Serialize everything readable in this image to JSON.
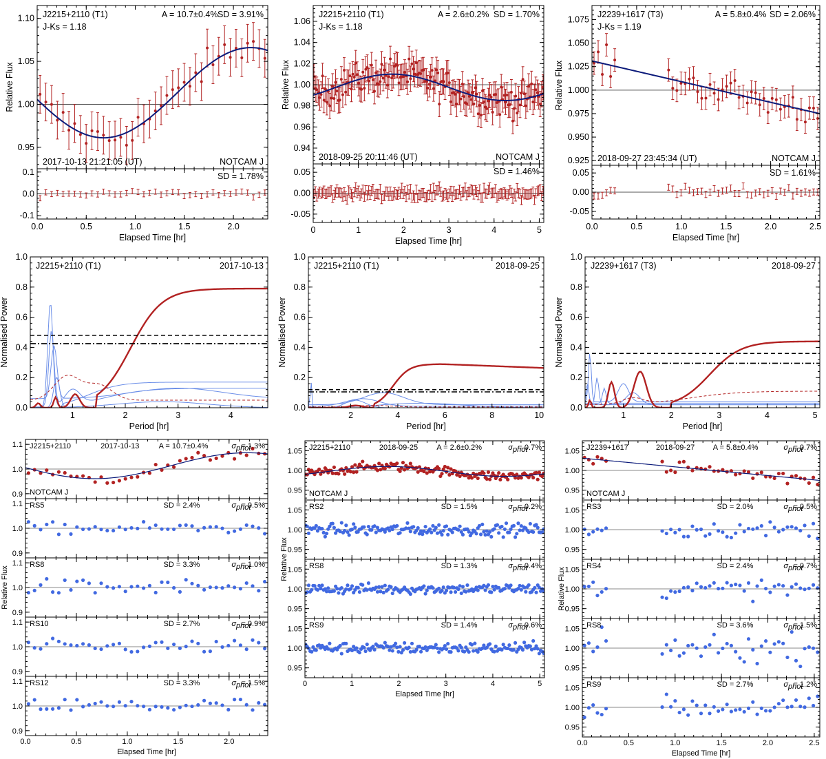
{
  "colors": {
    "target": "#b22222",
    "fit": "#0b1a7a",
    "ref": "#4169e1",
    "refline": "#6b8ee8",
    "axis": "#000000",
    "zero": "#666666"
  },
  "row1": {
    "xlabel": "Elapsed Time [hr]",
    "ylabel": "Relative Flux",
    "panels": [
      {
        "id": "a",
        "name": "J2215+2110 (T1)",
        "jks": "J-Ks = 1.18",
        "amp": "A = 10.7±0.4%",
        "sd": "SD = 3.91%",
        "date": "2017-10-13 21:21:05 (UT)",
        "inst": "NOTCAM J",
        "res_sd": "SD = 1.78%",
        "xlim": [
          0,
          2.35
        ],
        "ylim": [
          0.925,
          1.115
        ],
        "rylim": [
          -0.115,
          0.115
        ],
        "xticks": [
          "0.0",
          "0.5",
          "1.0",
          "1.5",
          "2.0"
        ],
        "yticks": [
          "0.95",
          "1.00",
          "1.05",
          "1.10"
        ],
        "rticks": [
          "-0.1",
          "0.0",
          "0.1"
        ]
      },
      {
        "id": "b",
        "name": "J2215+2110 (T1)",
        "jks": "J-Ks = 1.18",
        "amp": "A = 2.6±0.2%",
        "sd": "SD = 1.70%",
        "date": "2018-09-25 20:11:46 (UT)",
        "inst": "NOTCAM J",
        "res_sd": "SD = 1.46%",
        "xlim": [
          0,
          5.1
        ],
        "ylim": [
          0.925,
          1.075
        ],
        "rylim": [
          -0.07,
          0.07
        ],
        "xticks": [
          "0",
          "1",
          "2",
          "3",
          "4",
          "5"
        ],
        "yticks": [
          "0.94",
          "0.96",
          "0.98",
          "1.00",
          "1.02",
          "1.04",
          "1.06"
        ],
        "rticks": [
          "-0.05",
          "0.00",
          "0.05"
        ]
      },
      {
        "id": "c",
        "name": "J2239+1617 (T3)",
        "jks": "J-Ks = 1.19",
        "amp": "A = 5.8±0.4%",
        "sd": "SD = 2.06%",
        "date": "2018-09-27 23:45:34 (UT)",
        "inst": "NOTCAM J",
        "res_sd": "SD = 1.61%",
        "xlim": [
          0,
          2.55
        ],
        "ylim": [
          0.92,
          1.09
        ],
        "rylim": [
          -0.07,
          0.07
        ],
        "xticks": [
          "0.0",
          "0.5",
          "1.0",
          "1.5",
          "2.0",
          "2.5"
        ],
        "yticks": [
          "0.925",
          "0.950",
          "0.975",
          "1.000",
          "1.025",
          "1.050",
          "1.075"
        ],
        "rticks": [
          "-0.05",
          "0.00",
          "0.05"
        ]
      }
    ]
  },
  "row2": {
    "xlabel": "Period [hr]",
    "ylabel": "Normalised Power",
    "panels": [
      {
        "id": "a",
        "name": "J2215+2110 (T1)",
        "date": "2017-10-13",
        "xlim": [
          0.2,
          4.7
        ],
        "ylim": [
          0,
          1.0
        ],
        "fap1": 0.48,
        "fap2": 0.425,
        "peak_period_hr": 4.5,
        "peak_power": 0.79,
        "xticks": [
          "1",
          "2",
          "3",
          "4"
        ],
        "yticks": [
          "0.0",
          "0.2",
          "0.4",
          "0.6",
          "0.8",
          "1.0"
        ]
      },
      {
        "id": "b",
        "name": "J2215+2110 (T1)",
        "date": "2018-09-25",
        "xlim": [
          0.2,
          10.2
        ],
        "ylim": [
          0,
          1.0
        ],
        "fap1": 0.12,
        "fap2": 0.105,
        "peak_period_hr": 5.8,
        "peak_power": 0.29,
        "xticks": [
          "2",
          "4",
          "6",
          "8",
          "10"
        ],
        "yticks": [
          "0.0",
          "0.2",
          "0.4",
          "0.6",
          "0.8",
          "1.0"
        ]
      },
      {
        "id": "c",
        "name": "J2239+1617 (T3)",
        "date": "2018-09-27",
        "xlim": [
          0.2,
          5.1
        ],
        "ylim": [
          0,
          1.0
        ],
        "fap1": 0.36,
        "fap2": 0.295,
        "peak_period_hr": 5.1,
        "peak_power": 0.42,
        "xticks": [
          "1",
          "2",
          "3",
          "4",
          "5"
        ],
        "yticks": [
          "0.0",
          "0.2",
          "0.4",
          "0.6",
          "0.8",
          "1.0"
        ]
      }
    ]
  },
  "row3": {
    "xlabel": "Elapsed Time [hr]",
    "ylabel": "Relative Flux",
    "columns": [
      {
        "id": "a",
        "xlim": [
          0,
          2.38
        ],
        "xticks": [
          "0.0",
          "0.5",
          "1.0",
          "1.5",
          "2.0"
        ],
        "panels": [
          {
            "label": "J2215+2110",
            "date": "2017-10-13",
            "amp": "A = 10.7±0.4%",
            "sd": "",
            "sig": "= 1.3%",
            "inst": "NOTCAM J",
            "target": true,
            "ylim": [
              0.88,
              1.12
            ],
            "yticks": [
              "0.9",
              "1.0",
              "1.1"
            ]
          },
          {
            "label": "RS5",
            "sd": "SD = 2.4%",
            "sig": "= 0.5%",
            "target": false,
            "ylim": [
              0.88,
              1.12
            ],
            "yticks": [
              "0.9",
              "1.0",
              "1.1"
            ]
          },
          {
            "label": "RS8",
            "sd": "SD = 3.3%",
            "sig": "= 1.0%",
            "target": false,
            "ylim": [
              0.88,
              1.12
            ],
            "yticks": [
              "0.9",
              "1.0",
              "1.1"
            ]
          },
          {
            "label": "RS10",
            "sd": "SD = 2.7%",
            "sig": "= 0.9%",
            "target": false,
            "ylim": [
              0.88,
              1.12
            ],
            "yticks": [
              "0.9",
              "1.0",
              "1.1"
            ]
          },
          {
            "label": "RS12",
            "sd": "SD = 3.3%",
            "sig": "= 1.5%",
            "target": false,
            "ylim": [
              0.88,
              1.12
            ],
            "yticks": [
              "0.9",
              "1.0",
              "1.1"
            ]
          }
        ]
      },
      {
        "id": "b",
        "xlim": [
          0,
          5.1
        ],
        "xticks": [
          "0",
          "1",
          "2",
          "3",
          "4",
          "5"
        ],
        "panels": [
          {
            "label": "J2215+2110",
            "date": "2018-09-25",
            "amp": "A = 2.6±0.2%",
            "sd": "",
            "sig": "= 0.7%",
            "inst": "NOTCAM J",
            "target": true,
            "ylim": [
              0.925,
              1.075
            ],
            "yticks": [
              "0.95",
              "1.00",
              "1.05"
            ]
          },
          {
            "label": "RS2",
            "sd": "SD = 1.5%",
            "sig": "= 0.2%",
            "target": false,
            "ylim": [
              0.925,
              1.075
            ],
            "yticks": [
              "0.95",
              "1.00",
              "1.05"
            ]
          },
          {
            "label": "RS8",
            "sd": "SD = 1.3%",
            "sig": "= 0.4%",
            "target": false,
            "ylim": [
              0.925,
              1.075
            ],
            "yticks": [
              "0.95",
              "1.00",
              "1.05"
            ]
          },
          {
            "label": "RS9",
            "sd": "SD = 1.4%",
            "sig": "= 0.6%",
            "target": false,
            "ylim": [
              0.925,
              1.075
            ],
            "yticks": [
              "0.95",
              "1.00",
              "1.05"
            ]
          }
        ]
      },
      {
        "id": "c",
        "xlim": [
          0,
          2.56
        ],
        "xticks": [
          "0.0",
          "0.5",
          "1.0",
          "1.5",
          "2.0",
          "2.5"
        ],
        "panels": [
          {
            "label": "J2239+1617",
            "date": "2018-09-27",
            "amp": "A = 5.8±0.4%",
            "sd": "",
            "sig": "= 0.7%",
            "inst": "NOTCAM J",
            "target": true,
            "ylim": [
              0.925,
              1.075
            ],
            "yticks": [
              "0.95",
              "1.00",
              "1.05"
            ]
          },
          {
            "label": "RS3",
            "sd": "SD = 2.0%",
            "sig": "= 0.5%",
            "target": false,
            "ylim": [
              0.925,
              1.075
            ],
            "yticks": [
              "0.95",
              "1.00",
              "1.05"
            ]
          },
          {
            "label": "RS4",
            "sd": "SD = 2.4%",
            "sig": "= 0.7%",
            "target": false,
            "ylim": [
              0.925,
              1.075
            ],
            "yticks": [
              "0.95",
              "1.00",
              "1.05"
            ]
          },
          {
            "label": "RS8",
            "sd": "SD = 3.6%",
            "sig": "= 1.5%",
            "target": false,
            "ylim": [
              0.925,
              1.075
            ],
            "yticks": [
              "0.95",
              "1.00",
              "1.05"
            ]
          },
          {
            "label": "RS9",
            "sd": "SD = 2.7%",
            "sig": "= 1.2%",
            "target": false,
            "ylim": [
              0.925,
              1.075
            ],
            "yticks": [
              "0.95",
              "1.00",
              "1.05"
            ]
          }
        ]
      }
    ]
  },
  "chart_data": [
    {
      "type": "scatter",
      "title": "J2215+2110 (T1) 2017-10-13 light curve",
      "xlabel": "Elapsed Time [hr]",
      "ylabel": "Relative Flux",
      "amplitude_pct": 10.7,
      "amplitude_err_pct": 0.4,
      "sd_pct": 3.91,
      "residual_sd_pct": 1.78,
      "fit": "sinusoid, min ~0.96 at 0.77 hr, max ~1.066 at 2.3 hr"
    },
    {
      "type": "scatter",
      "title": "J2215+2110 (T1) 2018-09-25 light curve",
      "xlabel": "Elapsed Time [hr]",
      "ylabel": "Relative Flux",
      "amplitude_pct": 2.6,
      "amplitude_err_pct": 0.2,
      "sd_pct": 1.7,
      "residual_sd_pct": 1.46,
      "fit": "sinusoid, max ~1.01 at 1.8 hr, min ~0.985 at 4.3 hr"
    },
    {
      "type": "scatter",
      "title": "J2239+1617 (T3) 2018-09-27 light curve",
      "xlabel": "Elapsed Time [hr]",
      "ylabel": "Relative Flux",
      "amplitude_pct": 5.8,
      "amplitude_err_pct": 0.4,
      "sd_pct": 2.06,
      "residual_sd_pct": 1.61,
      "fit": "declining trend 1.03 at 0 hr to 0.975 at 2.55 hr"
    },
    {
      "type": "line",
      "title": "Periodogram J2215+2110 2017-10-13",
      "xlabel": "Period [hr]",
      "ylabel": "Normalised Power",
      "peak_period_hr": 4.5,
      "peak_power": 0.79
    },
    {
      "type": "line",
      "title": "Periodogram J2215+2110 2018-09-25",
      "xlabel": "Period [hr]",
      "ylabel": "Normalised Power",
      "peak_period_hr": 5.8,
      "peak_power": 0.29
    },
    {
      "type": "line",
      "title": "Periodogram J2239+1617 2018-09-27",
      "xlabel": "Period [hr]",
      "ylabel": "Normalised Power",
      "peak_period_hr": 5.1,
      "peak_power": 0.42
    }
  ]
}
